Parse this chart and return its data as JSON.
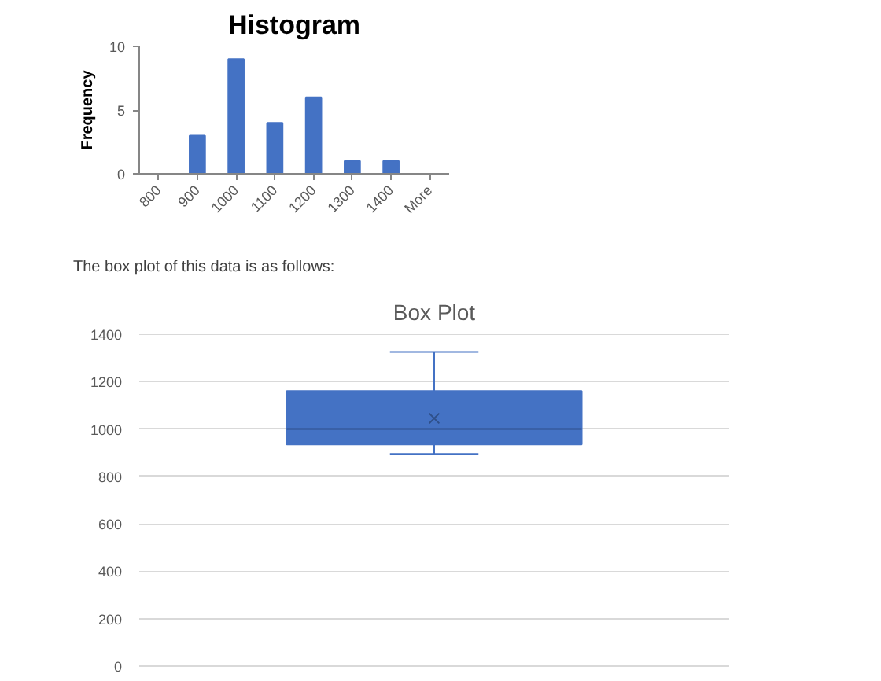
{
  "chart_data": [
    {
      "type": "bar",
      "title": "Histogram",
      "ylabel": "Frequency",
      "categories": [
        "800",
        "900",
        "1000",
        "1100",
        "1200",
        "1300",
        "1400",
        "More"
      ],
      "values": [
        0,
        3,
        9,
        4,
        6,
        1,
        1,
        0
      ],
      "color": "#4472c4",
      "ylim": [
        0,
        10
      ],
      "yticks": [
        0,
        5,
        10
      ]
    },
    {
      "type": "box",
      "title": "Box Plot",
      "annotations": [
        "The box plot of this data is as follows:"
      ],
      "categories": [
        null
      ],
      "boxes": [
        {
          "low": 895,
          "q1": 935,
          "median": 1000,
          "q3": 1160,
          "high": 1325,
          "mean": 1045
        }
      ],
      "color": "#4472c4",
      "ylim": [
        0,
        1400
      ],
      "yticks": [
        0,
        200,
        400,
        600,
        800,
        1000,
        1200,
        1400
      ],
      "grid": "y",
      "tick_labels": "y"
    }
  ]
}
